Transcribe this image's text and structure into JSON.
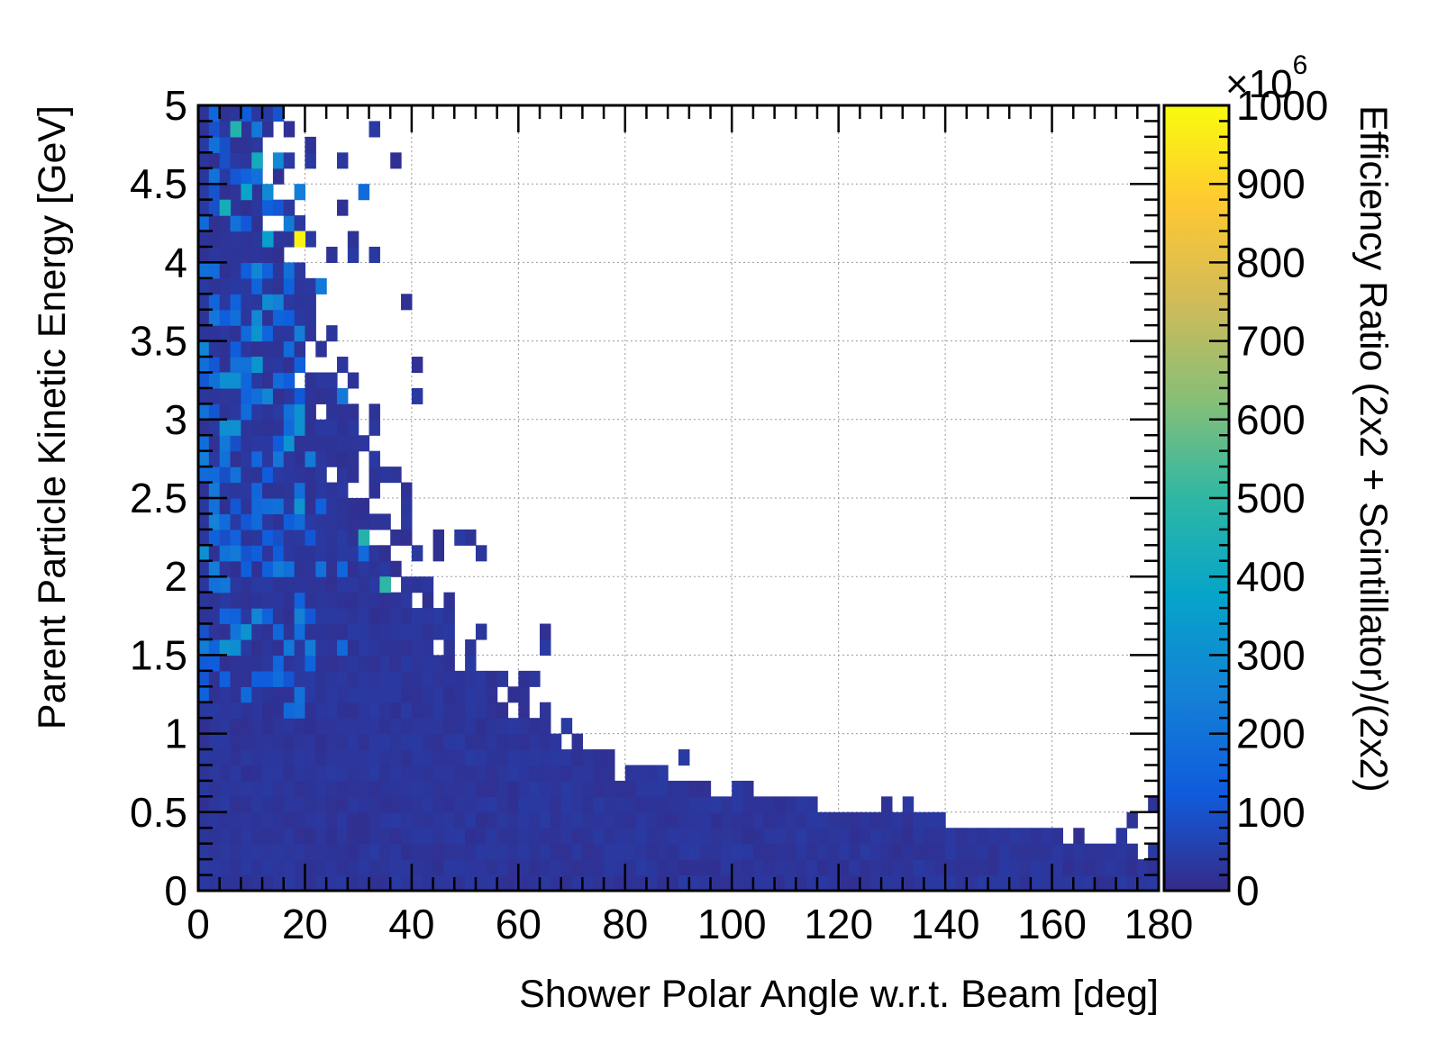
{
  "chart_data": {
    "type": "heatmap",
    "title": "",
    "xlabel": "Shower Polar Angle w.r.t. Beam [deg]",
    "ylabel": "Parent Particle Kinetic Energy [GeV]",
    "zlabel": "Efficiency Ratio (2x2 + Scintillator)/(2x2)",
    "z_multiplier": "×10",
    "z_multiplier_exponent": "6",
    "xlim": [
      0,
      180
    ],
    "ylim": [
      0,
      5
    ],
    "zlim": [
      0,
      1000
    ],
    "x_ticks": [
      "0",
      "20",
      "40",
      "60",
      "80",
      "100",
      "120",
      "140",
      "160",
      "180"
    ],
    "y_ticks": [
      "0",
      "0.5",
      "1",
      "1.5",
      "2",
      "2.5",
      "3",
      "3.5",
      "4",
      "4.5",
      "5"
    ],
    "z_ticks": [
      "0",
      "100",
      "200",
      "300",
      "400",
      "500",
      "600",
      "700",
      "800",
      "900",
      "1000"
    ],
    "grid": true,
    "bins": {
      "x_count": 90,
      "y_count": 50,
      "x_width": 2,
      "y_width": 0.1
    },
    "colormap": [
      "#352a87",
      "#0f5cdd",
      "#1481d6",
      "#06a4ca",
      "#2eb7a4",
      "#87bf77",
      "#d1bb59",
      "#fec832",
      "#f9fb0e"
    ],
    "edge_angle_vs_energy": {
      "energy": [
        5.0,
        4.6,
        4.2,
        3.8,
        3.4,
        3.0,
        2.6,
        2.2,
        1.8,
        1.4,
        1.0,
        0.8,
        0.6,
        0.5,
        0.4,
        0.3,
        0.0
      ],
      "max_angle": [
        16,
        16,
        17,
        18,
        21,
        28,
        31,
        38,
        45,
        54,
        65,
        80,
        104,
        120,
        148,
        180,
        180
      ]
    },
    "outlier_cells": [
      {
        "x": 19,
        "y": 4.15,
        "z": 980
      },
      {
        "x": 35,
        "y": 1.95,
        "z": 500
      },
      {
        "x": 30,
        "y": 2.25,
        "z": 470
      },
      {
        "x": 7,
        "y": 4.85,
        "z": 470
      },
      {
        "x": 11,
        "y": 4.65,
        "z": 420
      },
      {
        "x": 4,
        "y": 4.35,
        "z": 430
      },
      {
        "x": 9,
        "y": 4.45,
        "z": 380
      },
      {
        "x": 10,
        "y": 3.35,
        "z": 330
      },
      {
        "x": 12,
        "y": 4.15,
        "z": 360
      },
      {
        "x": 4,
        "y": 3.25,
        "z": 300
      }
    ]
  }
}
